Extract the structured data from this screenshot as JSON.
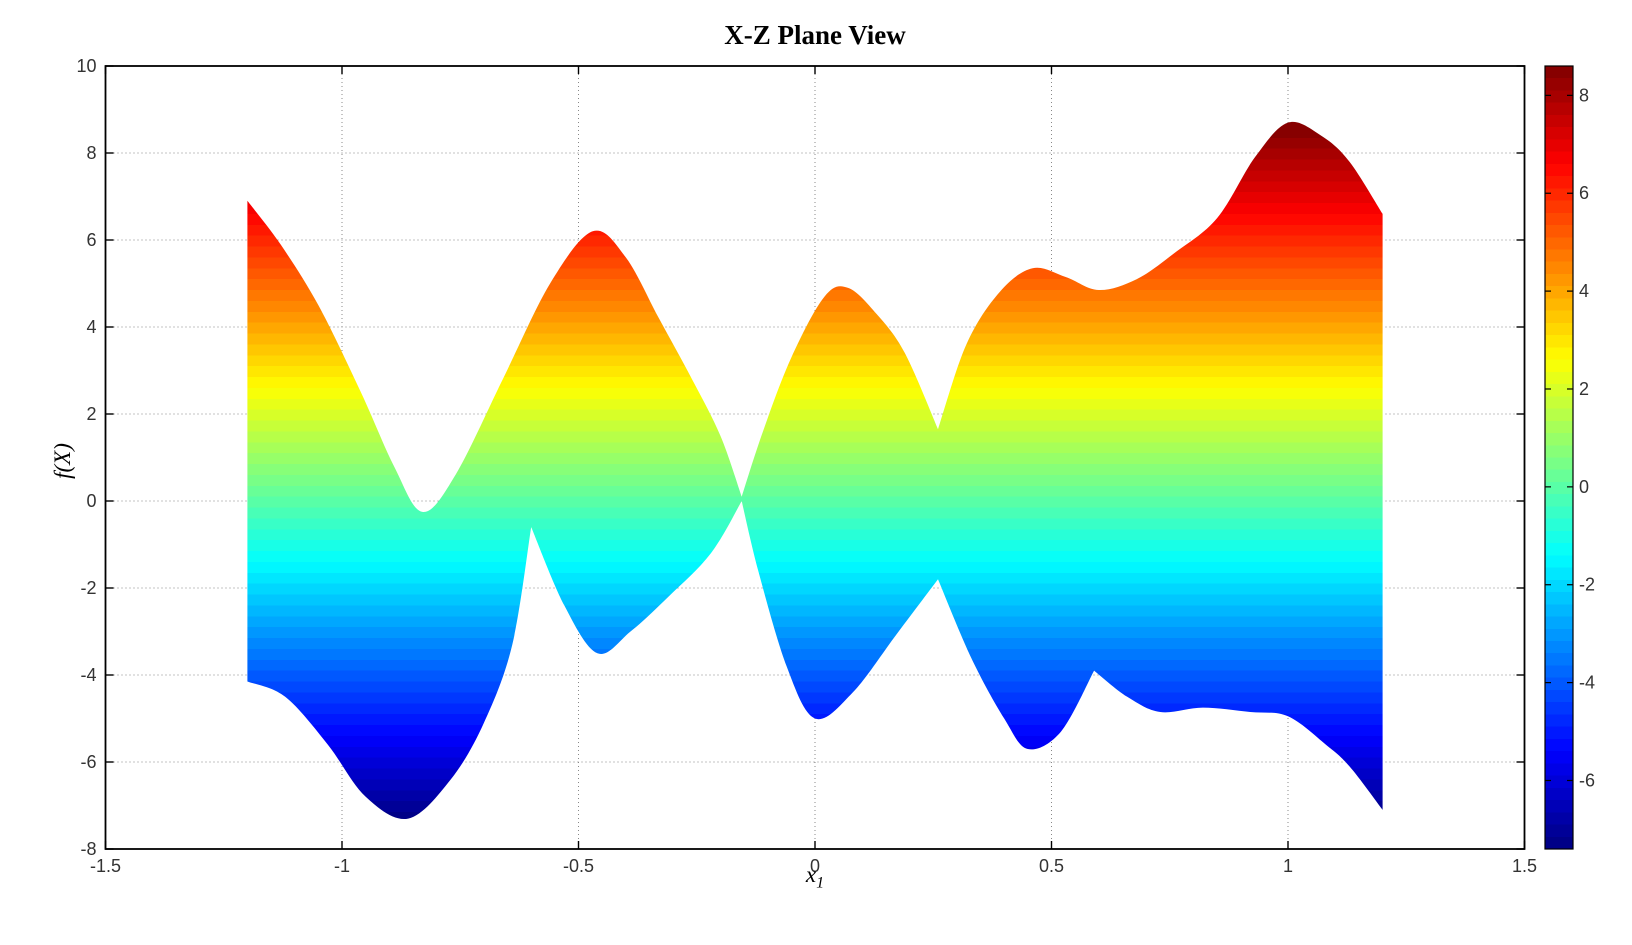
{
  "figure": {
    "background": "#ffffff"
  },
  "chart_data": {
    "type": "area",
    "title": "X-Z Plane View",
    "xlabel": "x_1",
    "xlabel_base": "x",
    "xlabel_sub": "1",
    "ylabel": "f(X)",
    "xlim": [
      -1.5,
      1.5
    ],
    "ylim": [
      -8,
      10
    ],
    "xticks": [
      -1.5,
      -1,
      -0.5,
      0,
      0.5,
      1,
      1.5
    ],
    "xtick_labels": [
      "-1.5",
      "-1",
      "-0.5",
      "0",
      "0.5",
      "1",
      "1.5"
    ],
    "yticks": [
      10,
      8,
      6,
      4,
      2,
      0,
      -2,
      -4,
      -6,
      -8
    ],
    "ytick_labels": [
      "10",
      "8",
      "6",
      "4",
      "2",
      "0",
      "-2",
      "-4",
      "-6",
      "-8"
    ],
    "grid": true,
    "grid_style": "dotted",
    "colormap": "jet",
    "caxis": [
      -7.4,
      8.6
    ],
    "colorbar": {
      "position": "right",
      "ticks": [
        8,
        6,
        4,
        2,
        0,
        -2,
        -4,
        -6
      ],
      "tick_labels": [
        "8",
        "6",
        "4",
        "2",
        "0",
        "-2",
        "-4",
        "-6"
      ]
    },
    "surface_x_range": [
      -1.2,
      1.2
    ],
    "upper_envelope": [
      [
        -1.2,
        6.9,
        1
      ],
      [
        -1.13,
        5.9
      ],
      [
        -1.05,
        4.5
      ],
      [
        -0.96,
        2.5
      ],
      [
        -0.89,
        0.8
      ],
      [
        -0.83,
        -0.25
      ],
      [
        -0.76,
        0.6
      ],
      [
        -0.66,
        2.8
      ],
      [
        -0.56,
        5.0
      ],
      [
        -0.47,
        6.2
      ],
      [
        -0.4,
        5.6
      ],
      [
        -0.33,
        4.2
      ],
      [
        -0.26,
        2.8
      ],
      [
        -0.2,
        1.5
      ],
      [
        -0.155,
        0.1,
        1
      ],
      [
        -0.11,
        1.6
      ],
      [
        -0.05,
        3.3
      ],
      [
        0.02,
        4.7
      ],
      [
        0.07,
        4.9
      ],
      [
        0.13,
        4.3
      ],
      [
        0.19,
        3.4
      ],
      [
        0.26,
        1.65,
        1
      ],
      [
        0.32,
        3.6
      ],
      [
        0.39,
        4.8
      ],
      [
        0.46,
        5.35
      ],
      [
        0.53,
        5.15
      ],
      [
        0.6,
        4.85
      ],
      [
        0.68,
        5.1
      ],
      [
        0.76,
        5.7
      ],
      [
        0.85,
        6.5
      ],
      [
        0.93,
        7.9
      ],
      [
        1.0,
        8.7
      ],
      [
        1.07,
        8.4
      ],
      [
        1.13,
        7.8
      ],
      [
        1.2,
        6.6,
        1
      ]
    ],
    "lower_envelope": [
      [
        -1.2,
        -4.15,
        1
      ],
      [
        -1.12,
        -4.5
      ],
      [
        -1.03,
        -5.6
      ],
      [
        -0.95,
        -6.8
      ],
      [
        -0.86,
        -7.3
      ],
      [
        -0.77,
        -6.4
      ],
      [
        -0.7,
        -5.1
      ],
      [
        -0.64,
        -3.3
      ],
      [
        -0.6,
        -0.6,
        1
      ],
      [
        -0.53,
        -2.4
      ],
      [
        -0.46,
        -3.5
      ],
      [
        -0.39,
        -3.0
      ],
      [
        -0.31,
        -2.2
      ],
      [
        -0.22,
        -1.2
      ],
      [
        -0.155,
        0.0,
        1
      ],
      [
        -0.12,
        -1.6
      ],
      [
        -0.06,
        -3.8
      ],
      [
        0.0,
        -5.0
      ],
      [
        0.08,
        -4.4
      ],
      [
        0.17,
        -3.1
      ],
      [
        0.26,
        -1.8,
        1
      ],
      [
        0.33,
        -3.6
      ],
      [
        0.4,
        -5.0
      ],
      [
        0.45,
        -5.7
      ],
      [
        0.52,
        -5.3
      ],
      [
        0.59,
        -3.9,
        1
      ],
      [
        0.66,
        -4.5
      ],
      [
        0.73,
        -4.85
      ],
      [
        0.82,
        -4.75
      ],
      [
        0.92,
        -4.85
      ],
      [
        1.0,
        -4.95
      ],
      [
        1.08,
        -5.6
      ],
      [
        1.13,
        -6.1
      ],
      [
        1.2,
        -7.1,
        1
      ]
    ],
    "colors": {
      "axis": "#000000",
      "tick_label": "#333333",
      "grid": "#888888",
      "jet_low": "#000087",
      "jet_high": "#870000"
    }
  }
}
